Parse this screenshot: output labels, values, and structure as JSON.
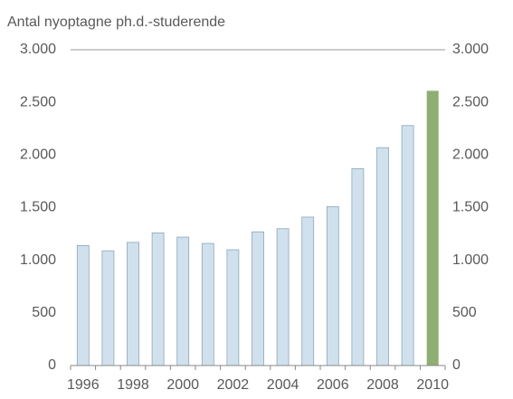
{
  "chart_data": {
    "type": "bar",
    "title": "Antal nyoptagne ph.d.-studerende",
    "categories": [
      "1996",
      null,
      "1998",
      null,
      "2000",
      null,
      "2002",
      null,
      "2004",
      null,
      "2006",
      null,
      "2008",
      null,
      "2010"
    ],
    "values": [
      1140,
      1090,
      1170,
      1260,
      1220,
      1160,
      1100,
      1270,
      1300,
      1410,
      1510,
      1870,
      2070,
      2280,
      2610
    ],
    "colors": [
      "#d0e1ed",
      "#d0e1ed",
      "#d0e1ed",
      "#d0e1ed",
      "#d0e1ed",
      "#d0e1ed",
      "#d0e1ed",
      "#d0e1ed",
      "#d0e1ed",
      "#d0e1ed",
      "#d0e1ed",
      "#d0e1ed",
      "#d0e1ed",
      "#d0e1ed",
      "#8eae72"
    ],
    "ylim": [
      0,
      3000
    ],
    "yticks": [
      0,
      500,
      {
        "value": 1000,
        "label": "1.000"
      },
      {
        "value": 1500,
        "label": "1.500"
      },
      {
        "value": 2000,
        "label": "2.000"
      },
      {
        "value": 2500,
        "label": "2.500"
      },
      {
        "value": 3000,
        "label": "3.000"
      }
    ],
    "grid": false
  }
}
